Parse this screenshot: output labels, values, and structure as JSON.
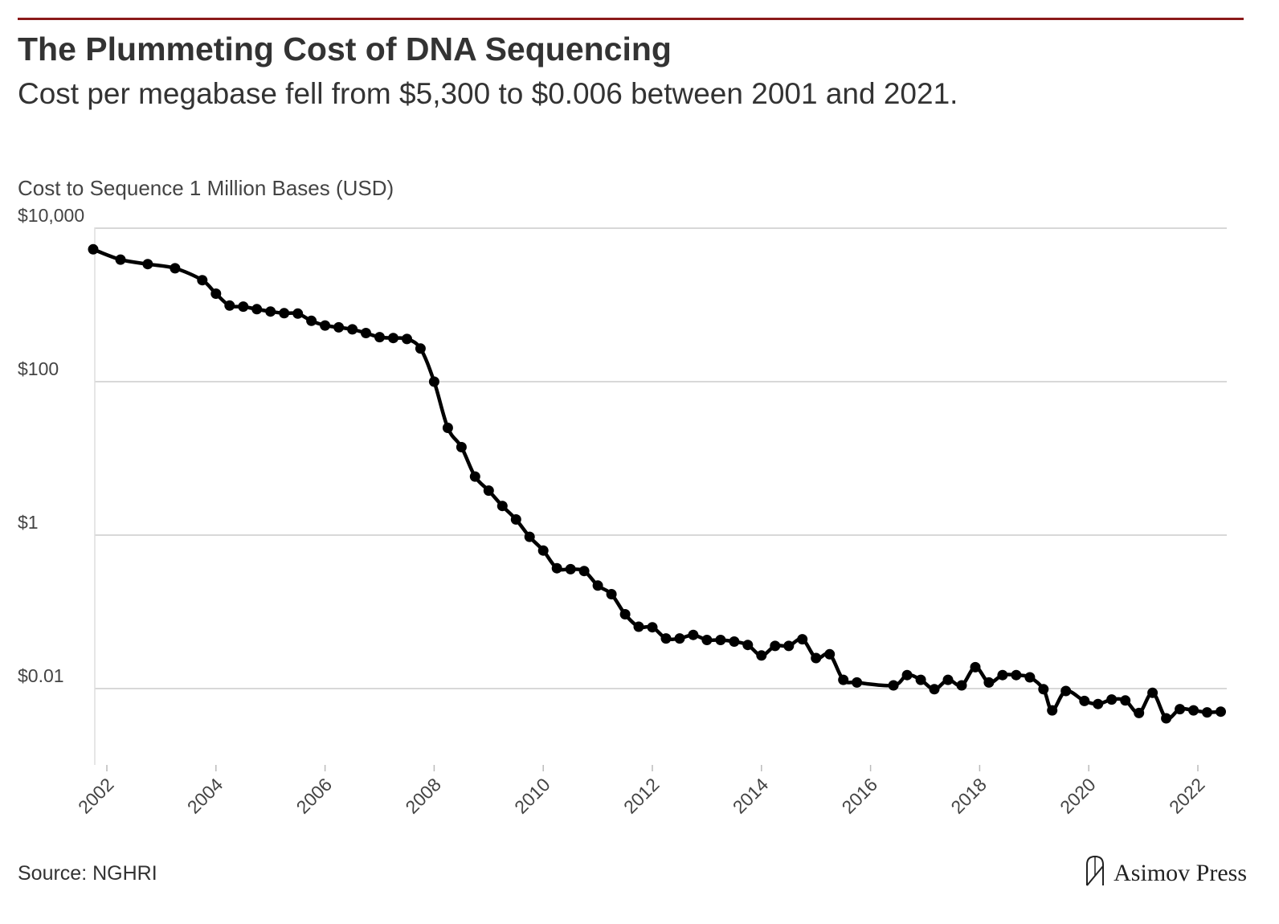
{
  "header": {
    "title": "The Plummeting Cost of DNA Sequencing",
    "subtitle": "Cost per megabase fell from $5,300 to $0.006 between 2001 and 2021."
  },
  "footer": {
    "source": "Source: NGHRI",
    "brand": "Asimov Press"
  },
  "colors": {
    "accent_rule": "#8b1a1a",
    "line": "#000000",
    "grid": "#cccccc"
  },
  "chart_data": {
    "type": "line",
    "title": "The Plummeting Cost of DNA Sequencing",
    "subtitle": "Cost per megabase fell from $5,300 to $0.006 between 2001 and 2021.",
    "ylabel": "Cost to Sequence 1 Million Bases (USD)",
    "xlabel": "",
    "yscale": "log",
    "ylim": [
      0.001,
      10000
    ],
    "xlim": [
      2001.75,
      2022.5
    ],
    "yticks": [
      {
        "value": 10000,
        "label": "$10,000"
      },
      {
        "value": 100,
        "label": "$100"
      },
      {
        "value": 1,
        "label": "$1"
      },
      {
        "value": 0.01,
        "label": "$0.01"
      }
    ],
    "xticks": [
      "2002",
      "2004",
      "2006",
      "2008",
      "2010",
      "2012",
      "2014",
      "2016",
      "2018",
      "2020",
      "2022"
    ],
    "grid": "horizontal",
    "legend": "none",
    "series": [
      {
        "x": [
          2001.75,
          2002.25,
          2002.75,
          2003.25,
          2003.75,
          2004.0,
          2004.25,
          2004.5,
          2004.75,
          2005.0,
          2005.25,
          2005.5,
          2005.75,
          2006.0,
          2006.25,
          2006.5,
          2006.75,
          2007.0,
          2007.25,
          2007.5,
          2007.75,
          2008.0,
          2008.25,
          2008.5,
          2008.75,
          2009.0,
          2009.25,
          2009.5,
          2009.75,
          2010.0,
          2010.25,
          2010.5,
          2010.75,
          2011.0,
          2011.25,
          2011.5,
          2011.75,
          2012.0,
          2012.25,
          2012.5,
          2012.75,
          2013.0,
          2013.25,
          2013.5,
          2013.75,
          2014.0,
          2014.25,
          2014.5,
          2014.75,
          2015.0,
          2015.25,
          2015.5,
          2015.75,
          2016.42,
          2016.67,
          2016.92,
          2017.17,
          2017.42,
          2017.67,
          2017.92,
          2018.17,
          2018.42,
          2018.67,
          2018.92,
          2019.17,
          2019.33,
          2019.58,
          2019.92,
          2020.17,
          2020.42,
          2020.67,
          2020.92,
          2021.17,
          2021.42,
          2021.67,
          2021.92,
          2022.17,
          2022.42
        ],
        "y": [
          5300,
          3900,
          3400,
          3000,
          2100,
          1400,
          980,
          950,
          880,
          820,
          780,
          770,
          620,
          540,
          510,
          480,
          430,
          380,
          370,
          360,
          270,
          100,
          25,
          14,
          5.8,
          3.8,
          2.4,
          1.6,
          0.95,
          0.63,
          0.37,
          0.36,
          0.34,
          0.22,
          0.17,
          0.093,
          0.064,
          0.063,
          0.045,
          0.045,
          0.05,
          0.043,
          0.043,
          0.041,
          0.037,
          0.027,
          0.036,
          0.036,
          0.044,
          0.025,
          0.028,
          0.013,
          0.012,
          0.011,
          0.015,
          0.013,
          0.0098,
          0.013,
          0.011,
          0.019,
          0.012,
          0.015,
          0.015,
          0.014,
          0.0098,
          0.0052,
          0.0093,
          0.0069,
          0.0063,
          0.0072,
          0.007,
          0.0048,
          0.0088,
          0.0041,
          0.0054,
          0.0052,
          0.0049,
          0.005
        ]
      }
    ]
  }
}
